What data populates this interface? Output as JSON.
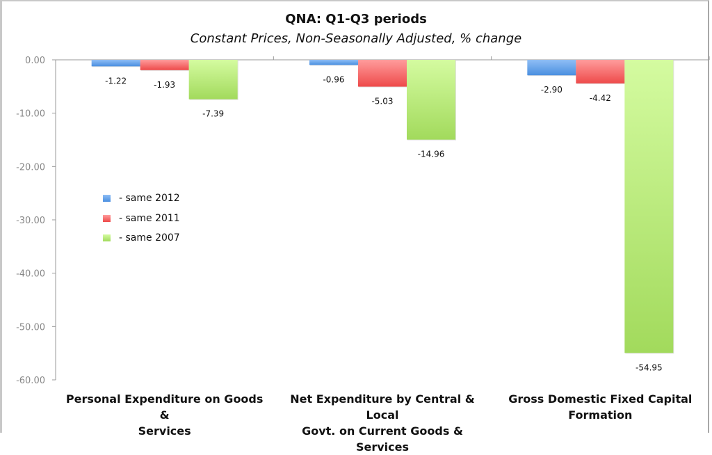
{
  "chart_data": {
    "type": "bar",
    "title": "QNA: Q1-Q3 periods",
    "subtitle": "Constant Prices, Non-Seasonally Adjusted, % change",
    "categories": [
      "Personal Expenditure on Goods & Services",
      "Net Expenditure by Central & Local Govt. on Current Goods & Services",
      "Gross Domestic Fixed Capital Formation"
    ],
    "category_lines": [
      [
        "Personal Expenditure on Goods &",
        "Services"
      ],
      [
        "Net Expenditure by Central & Local",
        "Govt. on Current Goods & Services"
      ],
      [
        "Gross Domestic Fixed Capital",
        "Formation"
      ]
    ],
    "series": [
      {
        "name": "- same 2012",
        "values": [
          -1.22,
          -0.96,
          -2.9
        ],
        "color": "#5b9be6"
      },
      {
        "name": "- same 2011",
        "values": [
          -1.93,
          -5.03,
          -4.42
        ],
        "color": "#f25c5c"
      },
      {
        "name": "- same 2007",
        "values": [
          -7.39,
          -14.96,
          -54.95
        ],
        "color": "#b4e27a"
      }
    ],
    "data_labels": [
      [
        "-1.22",
        "-0.96",
        "-2.90"
      ],
      [
        "-1.93",
        "-5.03",
        "-4.42"
      ],
      [
        "-7.39",
        "-14.96",
        "-54.95"
      ]
    ],
    "yticks": [
      "0.00",
      "-10.00",
      "-20.00",
      "-30.00",
      "-40.00",
      "-50.00",
      "-60.00"
    ],
    "ylim": [
      -60,
      0
    ],
    "xlabel": "",
    "ylabel": "",
    "grid": false,
    "legend": "left-middle"
  }
}
